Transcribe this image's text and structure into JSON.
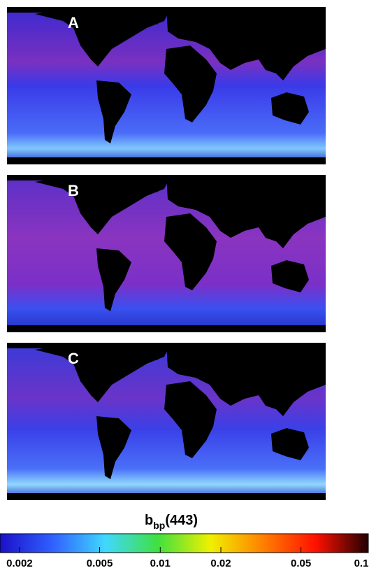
{
  "panels": [
    {
      "label": "A"
    },
    {
      "label": "B"
    },
    {
      "label": "C"
    }
  ],
  "colorbar": {
    "title": {
      "main": "b",
      "subscript": "bp",
      "suffix": "(443)"
    },
    "scale": "log",
    "lim": [
      0.0016,
      0.108
    ],
    "ticks": [
      0.002,
      0.005,
      0.01,
      0.02,
      0.05,
      0.1
    ],
    "colors": [
      "#1a10c8",
      "#3060ff",
      "#40d8ff",
      "#40e040",
      "#f0f000",
      "#ff8000",
      "#ff1000",
      "#200000"
    ]
  }
}
